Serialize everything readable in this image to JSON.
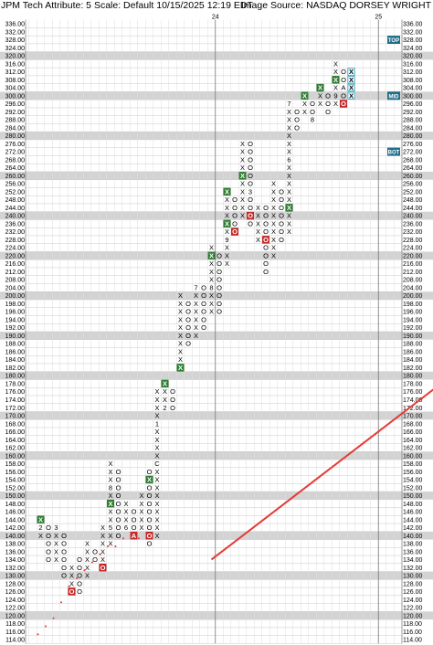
{
  "header": {
    "left_title": "JPM Tech Attribute: 5 Scale: Default 10/15/2025 12:19 EDT",
    "right_title": "Image Source: NASDAQ DORSEY WRIGHT"
  },
  "chart_data": {
    "type": "point-and-figure",
    "symbol": "JPM",
    "box_size": 4,
    "y_min": 114,
    "y_max": 336,
    "price_levels": [
      336,
      332,
      328,
      324,
      320,
      316,
      312,
      308,
      304,
      300,
      296,
      292,
      288,
      284,
      280,
      276,
      272,
      268,
      264,
      260,
      256,
      252,
      248,
      244,
      240,
      236,
      232,
      228,
      224,
      220,
      216,
      212,
      208,
      204,
      200,
      198,
      196,
      194,
      192,
      190,
      188,
      186,
      184,
      182,
      180,
      178,
      176,
      174,
      172,
      170,
      168,
      166,
      164,
      162,
      160,
      158,
      156,
      154,
      152,
      150,
      148,
      146,
      144,
      142,
      140,
      138,
      136,
      134,
      132,
      130,
      128,
      126,
      124,
      122,
      120,
      118,
      116,
      114
    ],
    "highlight_levels": [
      320,
      300,
      280,
      260,
      240,
      220,
      200,
      190,
      180,
      170,
      160,
      150,
      140,
      130,
      120
    ],
    "year_markers": [
      {
        "col": 24,
        "label": "24"
      },
      {
        "col": 45,
        "label": "25"
      }
    ],
    "trend_line": {
      "label": "bullish support line",
      "from": {
        "col": 23,
        "price": 134
      },
      "to": {
        "col": 66,
        "price": 198
      }
    },
    "signals": [
      {
        "col": 0,
        "label": "TOP",
        "price": 328
      },
      {
        "col": 0,
        "label": "MID",
        "price": 300
      },
      {
        "col": 0,
        "label": "BOT",
        "price": 272
      }
    ],
    "columns": [
      {
        "col": 1,
        "type": "X",
        "bottom": 140,
        "top": 144,
        "marks": [
          {
            "price": 144,
            "text": "X",
            "box": "green"
          },
          {
            "price": 142,
            "text": "2"
          }
        ]
      },
      {
        "col": 2,
        "type": "O",
        "top": 142,
        "bottom": 134,
        "marks": []
      },
      {
        "col": 3,
        "type": "X",
        "bottom": 134,
        "top": 142,
        "marks": [
          {
            "price": 142,
            "text": "3"
          }
        ]
      },
      {
        "col": 4,
        "type": "O",
        "top": 140,
        "bottom": 130,
        "marks": []
      },
      {
        "col": 5,
        "type": "X",
        "bottom": 126,
        "top": 132,
        "marks": [
          {
            "price": 126,
            "text": "O",
            "box": "red"
          }
        ]
      },
      {
        "col": 6,
        "type": "O",
        "top": 134,
        "bottom": 126,
        "marks": [
          {
            "price": 136,
            "text": "X",
            "box": "green"
          }
        ]
      },
      {
        "col": 7,
        "type": "X",
        "bottom": 130,
        "top": 138,
        "marks": []
      },
      {
        "col": 8,
        "type": "O",
        "top": 136,
        "bottom": 134,
        "marks": [
          {
            "price": 142,
            "text": "X",
            "box": "green"
          }
        ]
      },
      {
        "col": 9,
        "type": "X",
        "bottom": 132,
        "top": 142,
        "marks": [
          {
            "price": 132,
            "text": "O",
            "box": "red"
          }
        ]
      },
      {
        "col": 10,
        "type": "X",
        "bottom": 138,
        "top": 158,
        "marks": [
          {
            "price": 142,
            "text": "5"
          },
          {
            "price": 148,
            "text": "X",
            "box": "green"
          },
          {
            "price": 152,
            "text": "8"
          }
        ]
      },
      {
        "col": 11,
        "type": "O",
        "top": 156,
        "bottom": 140,
        "marks": []
      },
      {
        "col": 12,
        "type": "X",
        "bottom": 142,
        "top": 148,
        "marks": [
          {
            "price": 142,
            "text": "6"
          }
        ]
      },
      {
        "col": 13,
        "type": "O",
        "top": 146,
        "bottom": 140,
        "marks": [
          {
            "price": 152,
            "text": "X",
            "box": "green"
          },
          {
            "price": 140,
            "text": "A",
            "box": "red"
          }
        ]
      },
      {
        "col": 14,
        "type": "X",
        "bottom": 142,
        "top": 150,
        "marks": []
      },
      {
        "col": 15,
        "type": "O",
        "top": 156,
        "bottom": 138,
        "marks": [
          {
            "price": 154,
            "text": "X",
            "box": "green"
          },
          {
            "price": 140,
            "text": "O",
            "box": "red"
          }
        ]
      },
      {
        "col": 16,
        "type": "X",
        "bottom": 140,
        "top": 176,
        "marks": [
          {
            "price": 158,
            "text": "C"
          },
          {
            "price": 168,
            "text": "1"
          }
        ]
      },
      {
        "col": 17,
        "type": "X",
        "bottom": 172,
        "top": 178,
        "marks": [
          {
            "price": 178,
            "text": "X",
            "box": "green"
          },
          {
            "price": 172,
            "text": "2"
          }
        ]
      },
      {
        "col": 18,
        "type": "O",
        "top": 176,
        "bottom": 172,
        "marks": []
      },
      {
        "col": 19,
        "type": "X",
        "bottom": 182,
        "top": 200,
        "marks": [
          {
            "price": 182,
            "text": "X",
            "box": "green"
          }
        ]
      },
      {
        "col": 20,
        "type": "O",
        "top": 198,
        "bottom": 188,
        "marks": []
      },
      {
        "col": 21,
        "type": "X",
        "bottom": 190,
        "top": 206,
        "marks": [
          {
            "price": 204,
            "text": "7"
          }
        ]
      },
      {
        "col": 22,
        "type": "O",
        "top": 204,
        "bottom": 192,
        "marks": []
      },
      {
        "col": 23,
        "type": "X",
        "bottom": 196,
        "top": 224,
        "marks": [
          {
            "price": 204,
            "text": "8"
          },
          {
            "price": 220,
            "text": "X",
            "box": "green"
          }
        ]
      },
      {
        "col": 24,
        "type": "O",
        "top": 222,
        "bottom": 196,
        "marks": []
      },
      {
        "col": 25,
        "type": "X",
        "bottom": 214,
        "top": 252,
        "marks": [
          {
            "price": 228,
            "text": "9"
          },
          {
            "price": 236,
            "text": "X",
            "box": "green"
          },
          {
            "price": 252,
            "text": "X",
            "box": "green"
          }
        ]
      },
      {
        "col": 26,
        "type": "O",
        "top": 250,
        "bottom": 232,
        "marks": [
          {
            "price": 232,
            "text": "O",
            "box": "red"
          }
        ]
      },
      {
        "col": 27,
        "type": "X",
        "bottom": 240,
        "top": 276,
        "marks": [
          {
            "price": 260,
            "text": "X",
            "box": "green"
          }
        ]
      },
      {
        "col": 28,
        "type": "O",
        "top": 276,
        "bottom": 236,
        "marks": [
          {
            "price": 252,
            "text": "3"
          },
          {
            "price": 240,
            "text": "O",
            "box": "red"
          }
        ]
      },
      {
        "col": 29,
        "type": "X",
        "bottom": 228,
        "top": 244,
        "marks": []
      },
      {
        "col": 30,
        "type": "O",
        "top": 244,
        "bottom": 212,
        "marks": [
          {
            "price": 228,
            "text": "O",
            "box": "red"
          }
        ]
      },
      {
        "col": 31,
        "type": "X",
        "bottom": 220,
        "top": 256,
        "marks": []
      },
      {
        "col": 32,
        "type": "O",
        "top": 252,
        "bottom": 228,
        "marks": []
      },
      {
        "col": 33,
        "type": "X",
        "bottom": 232,
        "top": 296,
        "marks": [
          {
            "price": 244,
            "text": "X",
            "box": "green"
          },
          {
            "price": 268,
            "text": "6"
          },
          {
            "price": 296,
            "text": "7"
          }
        ]
      },
      {
        "col": 34,
        "type": "O",
        "top": 292,
        "bottom": 284,
        "marks": []
      },
      {
        "col": 35,
        "type": "X",
        "bottom": 292,
        "top": 300,
        "marks": [
          {
            "price": 300,
            "text": "X",
            "box": "green"
          }
        ]
      },
      {
        "col": 36,
        "type": "O",
        "top": 296,
        "bottom": 288,
        "marks": [
          {
            "price": 288,
            "text": "8"
          }
        ]
      },
      {
        "col": 37,
        "type": "X",
        "bottom": 296,
        "top": 304,
        "marks": [
          {
            "price": 304,
            "text": "X",
            "box": "green"
          }
        ]
      },
      {
        "col": 38,
        "type": "O",
        "top": 300,
        "bottom": 292,
        "marks": []
      },
      {
        "col": 39,
        "type": "X",
        "bottom": 296,
        "top": 316,
        "marks": [
          {
            "price": 308,
            "text": "X",
            "box": "green"
          },
          {
            "price": 300,
            "text": "9"
          }
        ]
      },
      {
        "col": 40,
        "type": "O",
        "top": 312,
        "bottom": 296,
        "marks": [
          {
            "price": 304,
            "text": "A"
          },
          {
            "price": 296,
            "text": "O",
            "box": "red"
          }
        ]
      },
      {
        "col": 41,
        "type": "X",
        "bottom": 300,
        "top": 312,
        "marks": [
          {
            "price": 312,
            "text": "X",
            "box": "outline"
          },
          {
            "price": 308,
            "text": "X",
            "box": "outline"
          },
          {
            "price": 304,
            "text": "X",
            "box": "outline"
          },
          {
            "price": 300,
            "text": "X",
            "box": "outline"
          }
        ]
      }
    ]
  }
}
